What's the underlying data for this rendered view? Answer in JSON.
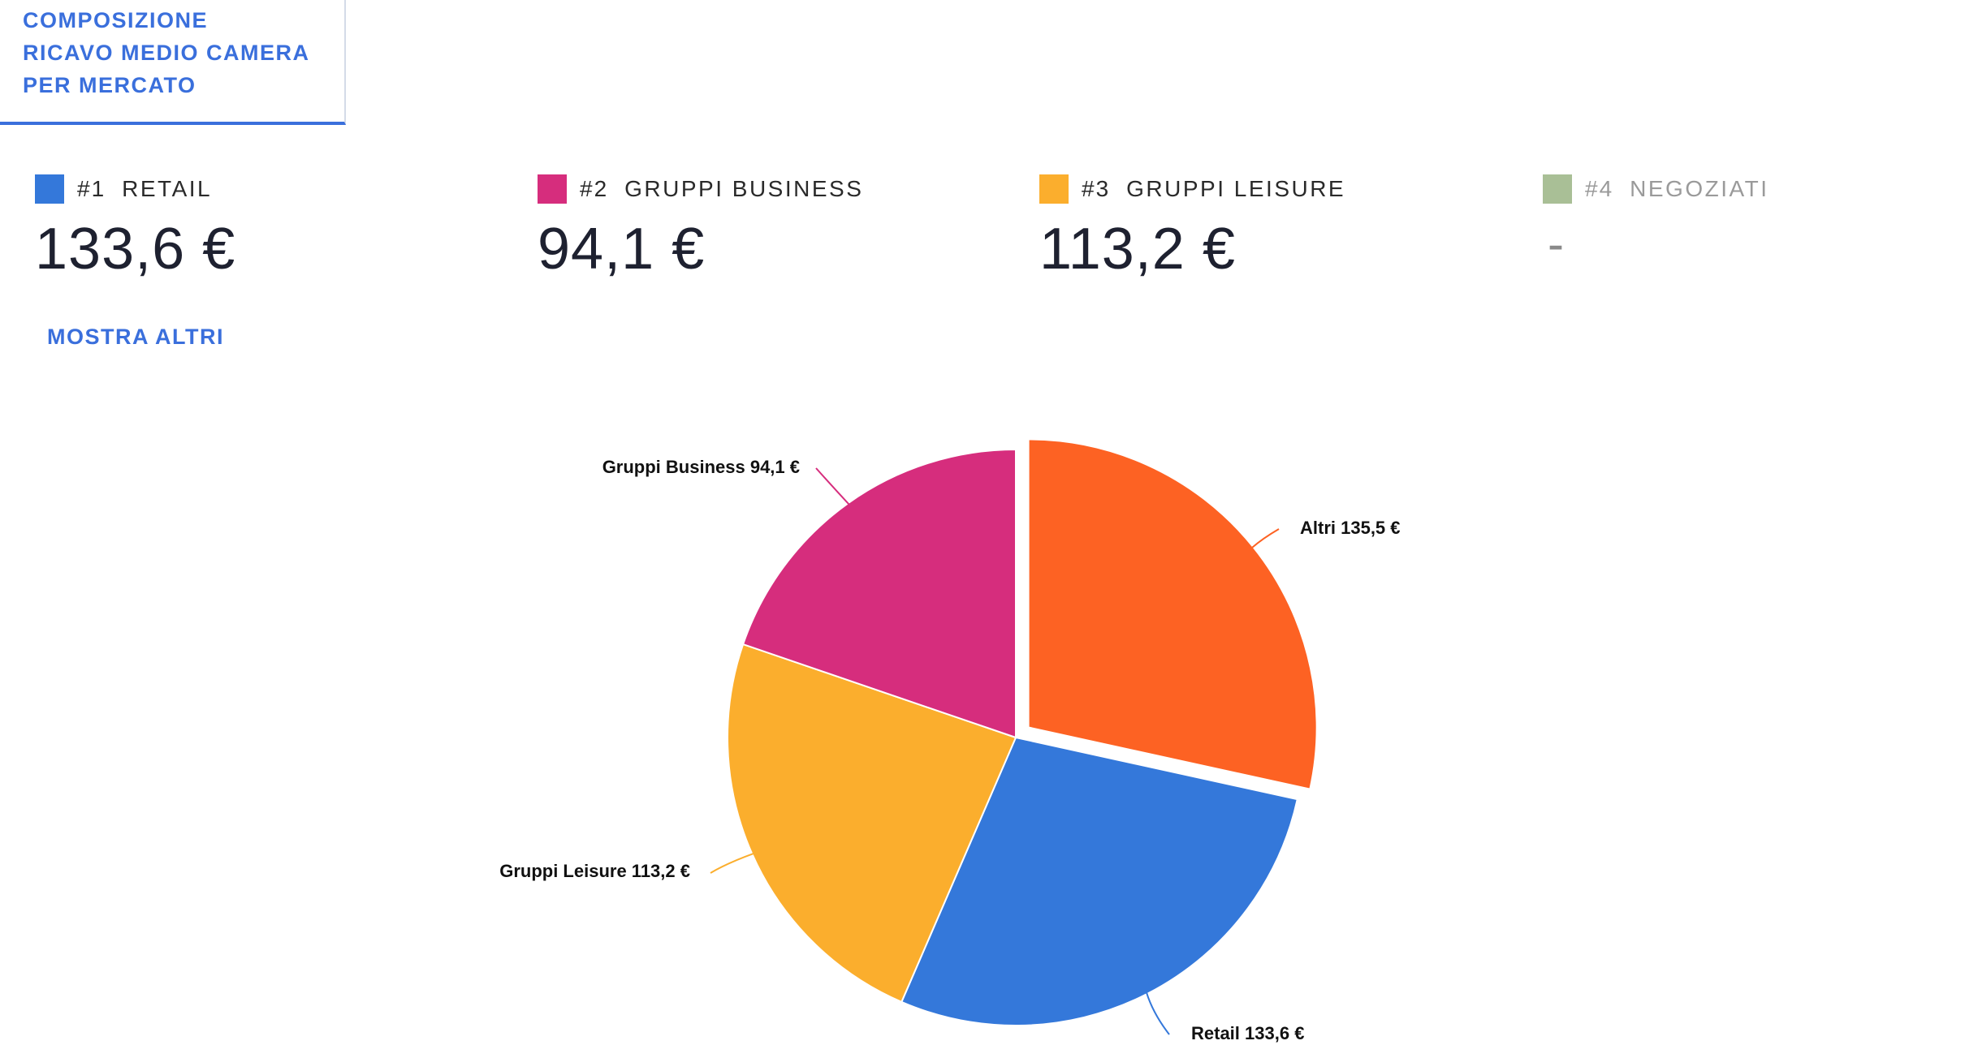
{
  "header": {
    "title_lines": [
      "COMPOSIZIONE",
      "RICAVO MEDIO CAMERA",
      "PER MERCATO"
    ]
  },
  "kpis": [
    {
      "rank": "#1",
      "label": "RETAIL",
      "value": "133,6 €",
      "color": "#3478da"
    },
    {
      "rank": "#2",
      "label": "GRUPPI BUSINESS",
      "value": "94,1 €",
      "color": "#d62d7d"
    },
    {
      "rank": "#3",
      "label": "GRUPPI LEISURE",
      "value": "113,2 €",
      "color": "#fbae2d"
    },
    {
      "rank": "#4",
      "label": "NEGOZIATI",
      "value": "-",
      "color": "#a9bf96"
    }
  ],
  "show_more_label": "MOSTRA ALTRI",
  "chart_data": {
    "type": "pie",
    "series": [
      {
        "name": "Altri",
        "value": 135.5,
        "display": "Altri 135,5 €",
        "color": "#fd6223",
        "exploded": true
      },
      {
        "name": "Retail",
        "value": 133.6,
        "display": "Retail 133,6 €",
        "color": "#3478da",
        "exploded": false
      },
      {
        "name": "Gruppi Leisure",
        "value": 113.2,
        "display": "Gruppi Leisure 113,2 €",
        "color": "#fbae2d",
        "exploded": false
      },
      {
        "name": "Gruppi Business",
        "value": 94.1,
        "display": "Gruppi Business 94,1 €",
        "color": "#d62d7d",
        "exploded": false
      }
    ]
  }
}
